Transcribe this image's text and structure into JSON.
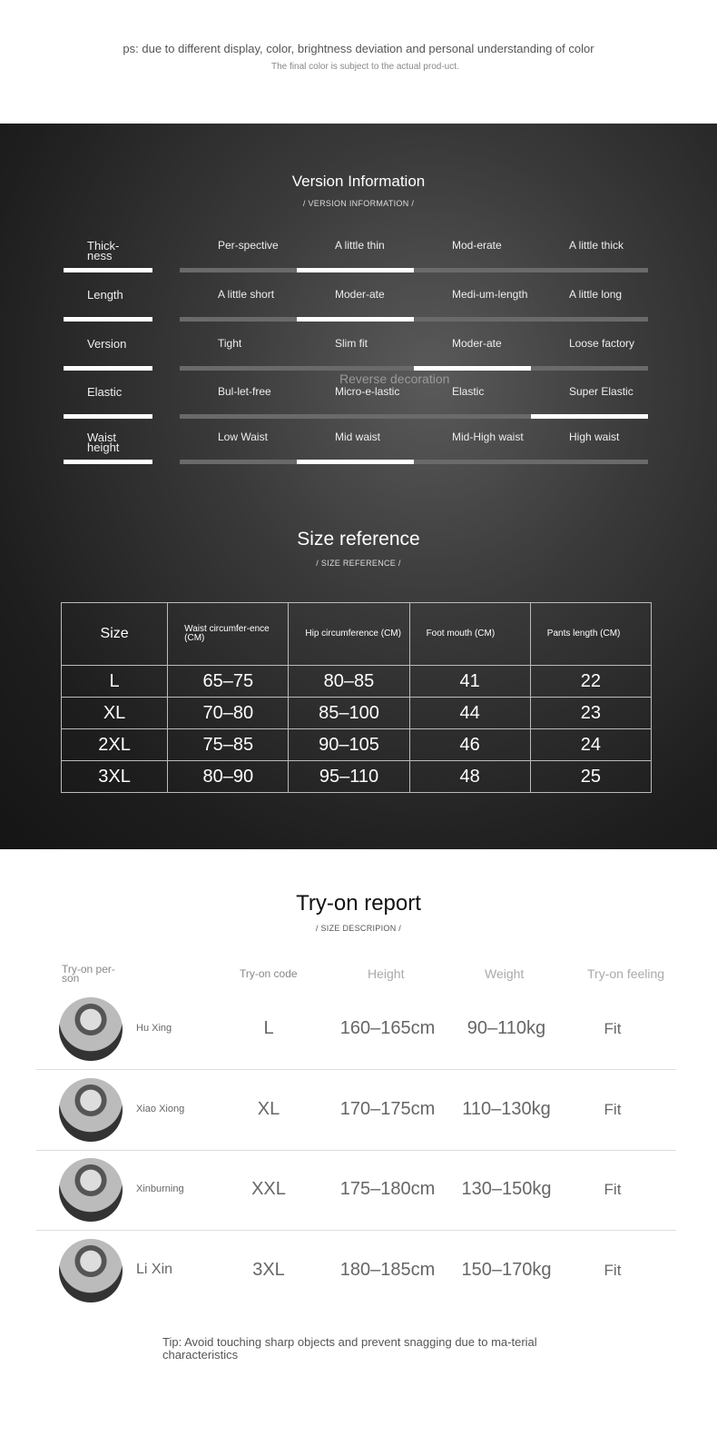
{
  "notice": {
    "line1": "ps: due to different display, color, brightness deviation and personal understanding of color",
    "line2": "The final color is subject to the actual prod-uct."
  },
  "version": {
    "title": "Version Information",
    "subtitle": "/ VERSION INFORMATION /",
    "overlay_text": "Reverse decoration",
    "rows": [
      {
        "label": "Thick-ness",
        "options": [
          "Per-spective",
          "A little thin",
          "Mod-erate",
          "A little thick"
        ],
        "selected": 1
      },
      {
        "label": "Length",
        "options": [
          "A little short",
          "Moder-ate",
          "Medi-um-length",
          "A little long"
        ],
        "selected": 1
      },
      {
        "label": "Version",
        "options": [
          "Tight",
          "Slim fit",
          "Moder-ate",
          "Loose factory"
        ],
        "selected": 2
      },
      {
        "label": "Elastic",
        "options": [
          "Bul-let-free",
          "Micro-e-lastic",
          "Elastic",
          "Super Elastic"
        ],
        "selected": 3
      },
      {
        "label": "Waist height",
        "options": [
          "Low Waist",
          "Mid waist",
          "Mid-High waist",
          "High waist"
        ],
        "selected": 1
      }
    ]
  },
  "size": {
    "title": "Size reference",
    "subtitle": "/ SIZE REFERENCE /",
    "headers": [
      "Size",
      "Waist circumfer-ence (CM)",
      "Hip circumference (CM)",
      "Foot mouth (CM)",
      "Pants length (CM)"
    ],
    "rows": [
      [
        "L",
        "65–75",
        "80–85",
        "41",
        "22"
      ],
      [
        "XL",
        "70–80",
        "85–100",
        "44",
        "23"
      ],
      [
        "2XL",
        "75–85",
        "90–105",
        "46",
        "24"
      ],
      [
        "3XL",
        "80–90",
        "95–110",
        "48",
        "25"
      ]
    ]
  },
  "tryon": {
    "title": "Try-on report",
    "subtitle": "/ SIZE DESCRIPION /",
    "headers": [
      "Try-on per-son",
      "Try-on code",
      "Height",
      "Weight",
      "Try-on feeling"
    ],
    "rows": [
      [
        "Hu Xing",
        "L",
        "160–165cm",
        "90–110kg",
        "Fit"
      ],
      [
        "Xiao Xiong",
        "XL",
        "170–175cm",
        "110–130kg",
        "Fit"
      ],
      [
        "Xinburning",
        "XXL",
        "175–180cm",
        "130–150kg",
        "Fit"
      ],
      [
        "Li Xin",
        "3XL",
        "180–185cm",
        "150–170kg",
        "Fit"
      ]
    ]
  },
  "tip": "Tip: Avoid touching sharp objects and prevent snagging due to ma-terial characteristics"
}
